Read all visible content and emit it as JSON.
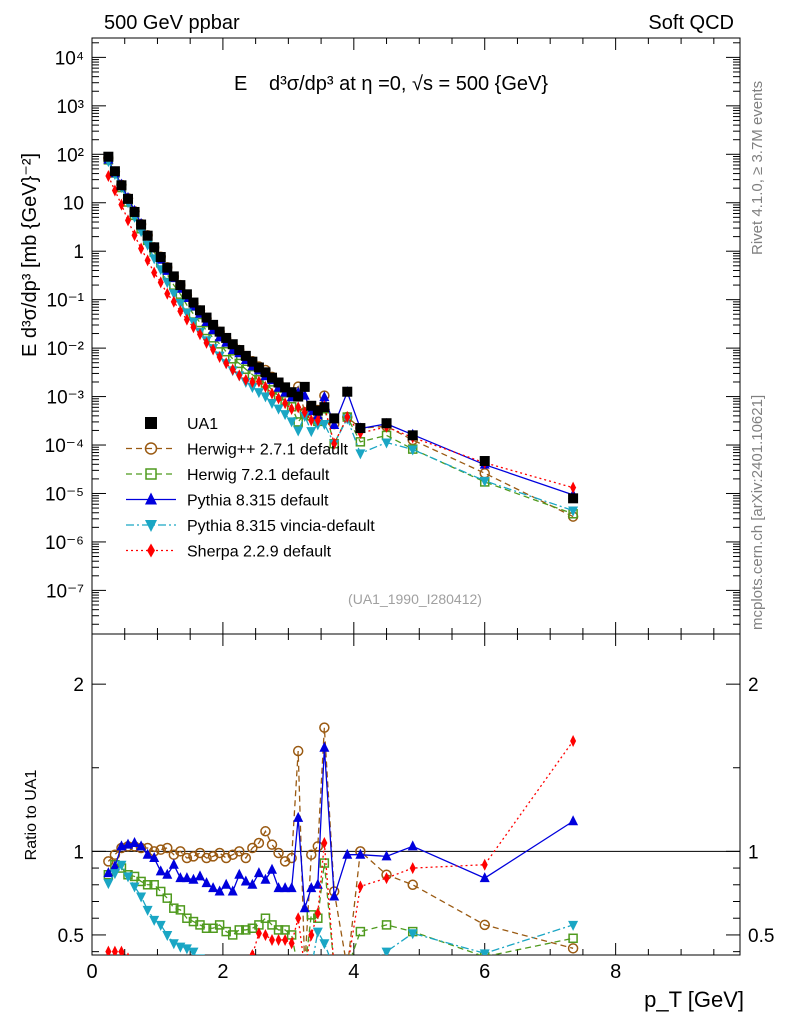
{
  "header": {
    "left": "500 GeV ppbar",
    "right": "Soft QCD"
  },
  "side_labels": {
    "rivet": "Rivet 4.1.0, ≥ 3.7M events",
    "mcplots": "mcplots.cern.ch [arXiv:2401.10621]"
  },
  "plot_title": {
    "prefix": "E",
    "formula": "d³σ/dp³ at η =0, √s = 500 {GeV}"
  },
  "analysis_id": "(UA1_1990_I280412)",
  "axis": {
    "top_ylabel": "E d³σ/dp³ [mb {GeV}⁻²]",
    "ratio_ylabel": "Ratio to UA1",
    "xlabel": "p_T [GeV]",
    "x_ticks": [
      "0",
      "2",
      "4",
      "6",
      "8"
    ],
    "top_y_ticks": [
      "10⁻⁷",
      "10⁻⁶",
      "10⁻⁵",
      "10⁻⁴",
      "10⁻³",
      "10⁻²",
      "10⁻¹",
      "1",
      "10",
      "10²",
      "10³",
      "10⁴"
    ],
    "ratio_y_ticks": [
      "0.5",
      "1",
      "2"
    ]
  },
  "legend": [
    {
      "name": "UA1",
      "color": "#000000",
      "marker": "square-filled",
      "line": "none"
    },
    {
      "name": "Herwig++ 2.7.1 default",
      "color": "#9a5a12",
      "marker": "circle-open",
      "line": "dashed"
    },
    {
      "name": "Herwig 7.2.1 default",
      "color": "#4f9a1e",
      "marker": "square-open",
      "line": "dashed"
    },
    {
      "name": "Pythia 8.315 default",
      "color": "#0000dd",
      "marker": "triangle-up",
      "line": "solid"
    },
    {
      "name": "Pythia 8.315 vincia-default",
      "color": "#1aa6c4",
      "marker": "triangle-down",
      "line": "dashdot"
    },
    {
      "name": "Sherpa 2.2.9 default",
      "color": "#ff0000",
      "marker": "diamond",
      "line": "dotted"
    }
  ],
  "chart_data": {
    "type": "scatter",
    "title": "E d³σ/dp³ at η =0, √s = 500 {GeV}",
    "xlabel": "p_T [GeV]",
    "ylabel": "E d³σ/dp³ [mb {GeV}⁻²]",
    "ratio_ylabel": "Ratio to UA1",
    "xlim": [
      0,
      9.9
    ],
    "ylim_log10": [
      -7.9,
      4.4
    ],
    "ratio_ylim": [
      0.38,
      2.3
    ],
    "x": [
      0.25,
      0.35,
      0.45,
      0.55,
      0.65,
      0.75,
      0.85,
      0.95,
      1.05,
      1.15,
      1.25,
      1.35,
      1.45,
      1.55,
      1.65,
      1.75,
      1.85,
      1.95,
      2.05,
      2.15,
      2.25,
      2.35,
      2.45,
      2.55,
      2.65,
      2.75,
      2.85,
      2.95,
      3.05,
      3.15,
      3.25,
      3.35,
      3.45,
      3.55,
      3.7,
      3.9,
      4.1,
      4.5,
      4.9,
      6.0,
      7.35
    ],
    "series": [
      {
        "name": "UA1",
        "log10_values": [
          1.95,
          1.65,
          1.36,
          1.08,
          0.81,
          0.55,
          0.32,
          0.08,
          -0.12,
          -0.34,
          -0.52,
          -0.7,
          -0.89,
          -1.06,
          -1.22,
          -1.37,
          -1.52,
          -1.66,
          -1.79,
          -1.92,
          -2.04,
          -2.16,
          -2.28,
          -2.4,
          -2.5,
          -2.61,
          -2.71,
          -2.81,
          -2.91,
          -3.0,
          -2.8,
          -3.19,
          -3.29,
          -3.22,
          -3.45,
          -2.9,
          -3.65,
          -3.55,
          -3.8,
          -4.33,
          -5.1
        ]
      },
      {
        "name": "Herwig++ 2.7.1 default",
        "ratio": [
          0.94,
          0.98,
          1.02,
          1.03,
          1.03,
          1.02,
          1.02,
          1.0,
          1.01,
          1.02,
          0.98,
          1.0,
          0.96,
          0.97,
          0.99,
          0.96,
          0.97,
          0.99,
          0.96,
          0.98,
          1.0,
          0.96,
          1.02,
          1.05,
          1.12,
          1.04,
          0.99,
          0.94,
          0.96,
          1.6,
          0.3,
          0.98,
          1.03,
          1.74,
          0.76,
          0.3,
          1.0,
          0.86,
          0.8,
          0.56,
          0.42
        ]
      },
      {
        "name": "Herwig 7.2.1 default",
        "ratio": [
          0.86,
          0.92,
          0.9,
          0.86,
          0.85,
          0.82,
          0.8,
          0.8,
          0.76,
          0.72,
          0.66,
          0.65,
          0.6,
          0.58,
          0.56,
          0.54,
          0.54,
          0.56,
          0.52,
          0.5,
          0.53,
          0.53,
          0.54,
          0.56,
          0.6,
          0.56,
          0.53,
          0.53,
          0.5,
          0.3,
          0.28,
          0.62,
          0.6,
          0.93,
          0.3,
          0.3,
          0.52,
          0.56,
          0.52,
          0.37,
          0.48
        ]
      },
      {
        "name": "Pythia 8.315 default",
        "ratio": [
          0.87,
          0.91,
          1.03,
          1.04,
          1.05,
          1.03,
          0.98,
          0.96,
          0.88,
          0.86,
          0.92,
          0.84,
          0.84,
          0.83,
          0.85,
          0.81,
          0.78,
          0.76,
          0.8,
          0.76,
          0.86,
          0.82,
          0.8,
          0.87,
          0.83,
          0.89,
          0.78,
          0.78,
          0.78,
          1.2,
          0.66,
          0.78,
          0.8,
          1.62,
          0.73,
          0.98,
          0.98,
          0.97,
          1.03,
          0.84,
          1.18
        ]
      },
      {
        "name": "Pythia 8.315 vincia-default",
        "ratio": [
          0.81,
          0.87,
          0.92,
          0.85,
          0.79,
          0.73,
          0.65,
          0.59,
          0.56,
          0.5,
          0.45,
          0.43,
          0.42,
          0.4,
          0.36,
          0.34,
          0.33,
          0.32,
          0.3,
          0.29,
          0.3,
          0.29,
          0.3,
          0.31,
          0.32,
          0.3,
          0.29,
          0.28,
          0.25,
          0.2,
          0.25,
          0.3,
          0.52,
          0.45,
          0.3,
          0.28,
          0.3,
          0.4,
          0.51,
          0.39,
          0.56
        ]
      },
      {
        "name": "Sherpa 2.2.9 default",
        "ratio": [
          0.4,
          0.4,
          0.4,
          0.36,
          0.33,
          0.32,
          0.31,
          0.3,
          0.3,
          0.29,
          0.3,
          0.29,
          0.3,
          0.31,
          0.32,
          0.3,
          0.31,
          0.3,
          0.3,
          0.3,
          0.3,
          0.32,
          0.38,
          0.51,
          0.5,
          0.47,
          0.47,
          0.47,
          0.45,
          0.6,
          0.3,
          0.5,
          0.63,
          1.05,
          0.3,
          0.3,
          0.79,
          0.84,
          0.9,
          0.92,
          1.66
        ]
      }
    ]
  }
}
